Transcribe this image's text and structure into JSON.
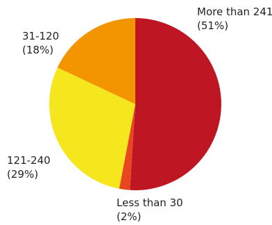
{
  "chart_data": {
    "type": "pie",
    "title": "",
    "slices": [
      {
        "category": "More than 241",
        "percent_label": "(51%)",
        "value": 51,
        "color": "#be1622"
      },
      {
        "category": "Less than 30",
        "percent_label": "(2%)",
        "value": 2,
        "color": "#e8461e"
      },
      {
        "category": "121-240",
        "percent_label": "(29%)",
        "value": 29,
        "color": "#f5e61e"
      },
      {
        "category": "31-120",
        "percent_label": "(18%)",
        "value": 18,
        "color": "#f29500"
      }
    ]
  }
}
